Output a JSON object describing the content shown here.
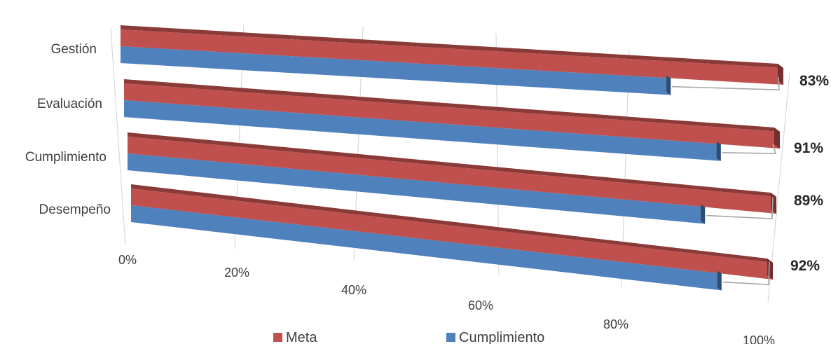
{
  "chart_data": {
    "type": "bar",
    "orientation": "horizontal",
    "style": "3d-perspective",
    "categories": [
      "Gestión",
      "Evaluación",
      "Cumplimiento",
      "Desempeño"
    ],
    "series": [
      {
        "name": "Meta",
        "values": [
          100,
          100,
          100,
          100
        ],
        "color": "#c0504d"
      },
      {
        "name": "Cumplimiento",
        "values": [
          83,
          91,
          89,
          92
        ],
        "color": "#4f81bd"
      }
    ],
    "data_labels": [
      "83%",
      "91%",
      "89%",
      "92%"
    ],
    "xaxis": {
      "range": [
        0,
        100
      ],
      "ticks": [
        "0%",
        "20%",
        "40%",
        "60%",
        "80%",
        "100%"
      ]
    },
    "grid": true,
    "legend": "bottom"
  }
}
